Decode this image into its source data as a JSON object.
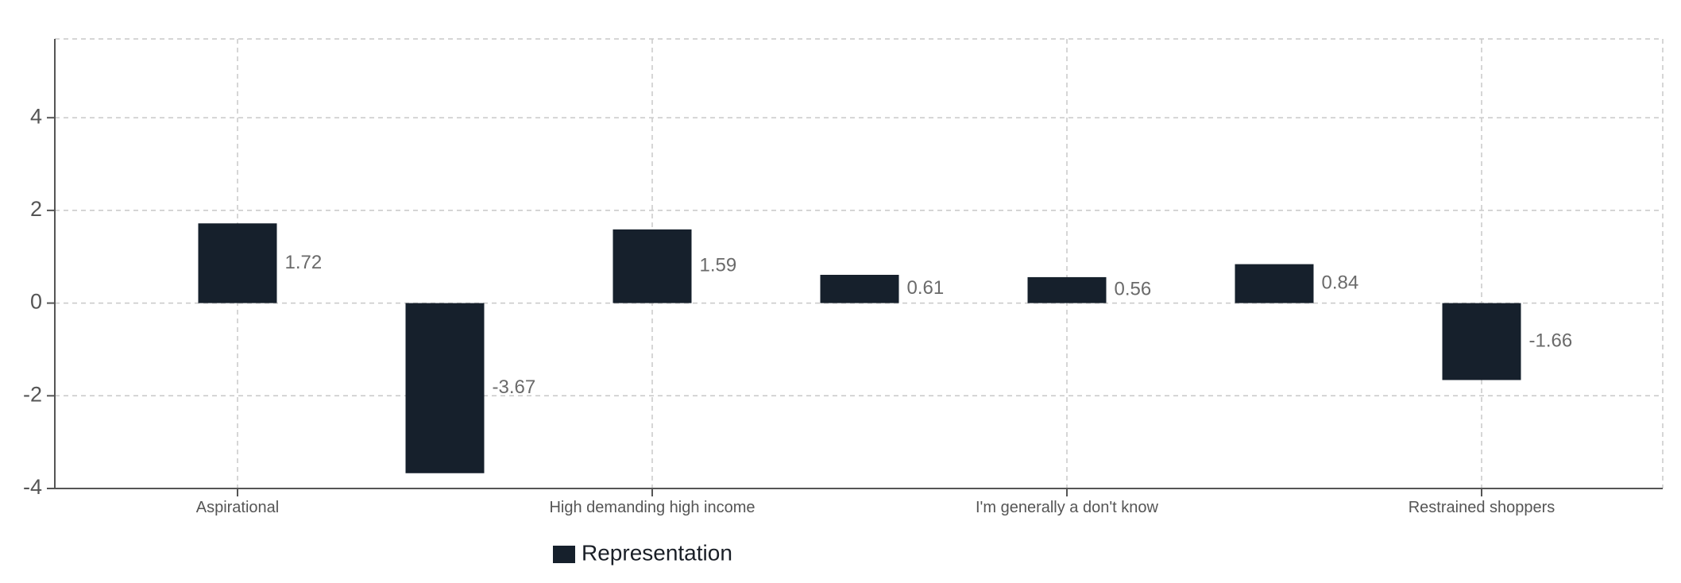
{
  "chart_data": {
    "type": "bar",
    "categories": [
      "Aspirational",
      "",
      "High demanding high income",
      "",
      "I'm generally a don't know",
      "",
      "Restrained shoppers"
    ],
    "series": [
      {
        "name": "Representation",
        "values": [
          1.72,
          -3.67,
          1.59,
          0.61,
          0.56,
          0.84,
          -1.66
        ],
        "color": "#16202c"
      }
    ],
    "data_labels": [
      "1.72",
      "-3.67",
      "1.59",
      "0.61",
      "0.56",
      "0.84",
      "-1.66"
    ],
    "y_ticks": [
      -4,
      -2,
      0,
      2,
      4
    ],
    "y_tick_labels": [
      "-4",
      "-2",
      "0",
      "2",
      "4"
    ],
    "ylim": [
      -4,
      5.7
    ],
    "grid": true,
    "legend_position": "bottom-left"
  }
}
